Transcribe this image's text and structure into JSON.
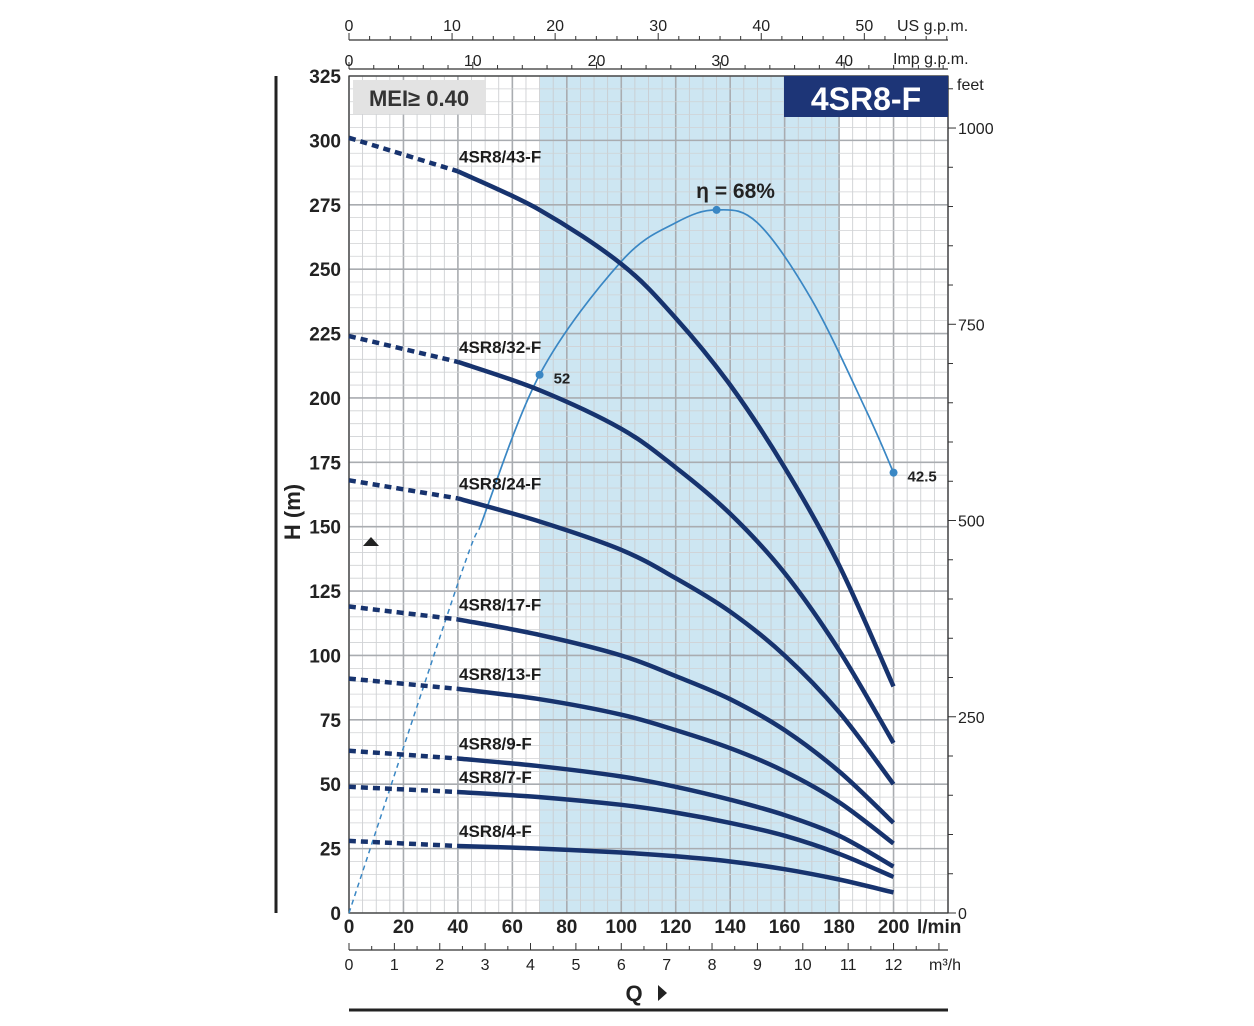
{
  "chart_data": {
    "type": "line",
    "title": "4SR8-F",
    "badge": "MEI≥ 0.40",
    "xlabel": "Q",
    "ylabel": "H (m)",
    "x_unit": "l/min",
    "y_unit_right": "feet",
    "xlim": [
      0,
      220
    ],
    "ylim": [
      0,
      325
    ],
    "x_ticks": [
      0,
      20,
      40,
      60,
      80,
      100,
      120,
      140,
      160,
      180,
      200
    ],
    "y_ticks": [
      0,
      25,
      50,
      75,
      100,
      125,
      150,
      175,
      200,
      225,
      250,
      275,
      300,
      325
    ],
    "secondary_axes": {
      "feet": {
        "label": "feet",
        "ticks": [
          0,
          250,
          500,
          750,
          1000
        ]
      },
      "m3h": {
        "label": "m³/h",
        "ticks": [
          0,
          1,
          2,
          3,
          4,
          5,
          6,
          7,
          8,
          9,
          10,
          11,
          12
        ]
      },
      "us_gpm": {
        "label": "US g.p.m.",
        "ticks": [
          0,
          10,
          20,
          30,
          40,
          50
        ]
      },
      "imp_gpm": {
        "label": "Imp g.p.m.",
        "ticks": [
          0,
          10,
          20,
          30,
          40
        ]
      }
    },
    "recommended_range": [
      70,
      180
    ],
    "series": [
      {
        "name": "4SR8/43-F",
        "x": [
          0,
          40,
          70,
          100,
          120,
          140,
          160,
          180,
          200
        ],
        "y": [
          301,
          288,
          273,
          252,
          231,
          205,
          173,
          135,
          88
        ],
        "dashed_until": 40
      },
      {
        "name": "4SR8/32-F",
        "x": [
          0,
          40,
          70,
          100,
          120,
          140,
          160,
          180,
          200
        ],
        "y": [
          224,
          214,
          203,
          188,
          173,
          155,
          132,
          102,
          66
        ],
        "dashed_until": 40
      },
      {
        "name": "4SR8/24-F",
        "x": [
          0,
          40,
          70,
          100,
          120,
          140,
          160,
          180,
          200
        ],
        "y": [
          168,
          161,
          152,
          141,
          130,
          117,
          100,
          78,
          50
        ],
        "dashed_until": 40
      },
      {
        "name": "4SR8/17-F",
        "x": [
          0,
          40,
          70,
          100,
          120,
          140,
          160,
          180,
          200
        ],
        "y": [
          119,
          114,
          108,
          100,
          92,
          83,
          71,
          55,
          35
        ],
        "dashed_until": 40
      },
      {
        "name": "4SR8/13-F",
        "x": [
          0,
          40,
          70,
          100,
          120,
          140,
          160,
          180,
          200
        ],
        "y": [
          91,
          87,
          83,
          77,
          71,
          64,
          55,
          43,
          27
        ],
        "dashed_until": 40
      },
      {
        "name": "4SR8/9-F",
        "x": [
          0,
          40,
          70,
          100,
          120,
          140,
          160,
          180,
          200
        ],
        "y": [
          63,
          60,
          57,
          53,
          49,
          44,
          38,
          30,
          18
        ],
        "dashed_until": 40
      },
      {
        "name": "4SR8/7-F",
        "x": [
          0,
          40,
          70,
          100,
          120,
          140,
          160,
          180,
          200
        ],
        "y": [
          49,
          47,
          45,
          42,
          39,
          35,
          30,
          23,
          14
        ],
        "dashed_until": 40
      },
      {
        "name": "4SR8/4-F",
        "x": [
          0,
          40,
          70,
          100,
          120,
          140,
          160,
          180,
          200
        ],
        "y": [
          28,
          26,
          25,
          23.5,
          22,
          20,
          17,
          13,
          8
        ],
        "dashed_until": 40
      }
    ],
    "efficiency": {
      "label": "η = 68%",
      "x": [
        0,
        40,
        70,
        100,
        120,
        135,
        150,
        170,
        190,
        200
      ],
      "y": [
        0,
        128,
        209,
        253,
        268,
        273,
        268,
        238,
        195,
        171
      ],
      "dashed_until": 48,
      "points": [
        {
          "x": 70,
          "y": 209,
          "label": "52"
        },
        {
          "x": 135,
          "y": 273,
          "label": ""
        },
        {
          "x": 200,
          "y": 171,
          "label": "42.5"
        }
      ]
    },
    "colors": {
      "curve": "#17336e",
      "efficiency": "#3a87c4",
      "band": "#cde6f2",
      "title_bg": "#1d3577"
    }
  }
}
